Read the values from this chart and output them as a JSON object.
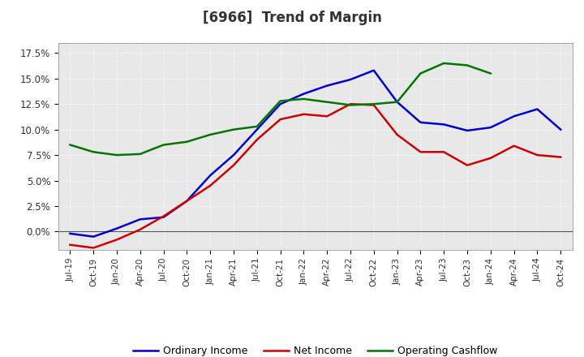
{
  "title": "[6966]  Trend of Margin",
  "x_labels": [
    "Jul-19",
    "Oct-19",
    "Jan-20",
    "Apr-20",
    "Jul-20",
    "Oct-20",
    "Jan-21",
    "Apr-21",
    "Jul-21",
    "Oct-21",
    "Jan-22",
    "Apr-22",
    "Jul-22",
    "Oct-22",
    "Jan-23",
    "Apr-23",
    "Jul-23",
    "Oct-23",
    "Jan-24",
    "Apr-24",
    "Jul-24",
    "Oct-24"
  ],
  "ordinary_income": [
    -0.002,
    -0.005,
    0.003,
    0.012,
    0.014,
    0.03,
    0.055,
    0.075,
    0.1,
    0.125,
    0.135,
    0.143,
    0.149,
    0.158,
    0.127,
    0.107,
    0.105,
    0.099,
    0.102,
    0.113,
    0.12,
    0.1
  ],
  "net_income": [
    -0.013,
    -0.016,
    -0.008,
    0.002,
    0.015,
    0.03,
    0.045,
    0.065,
    0.09,
    0.11,
    0.115,
    0.113,
    0.125,
    0.124,
    0.095,
    0.078,
    0.078,
    0.065,
    0.072,
    0.084,
    0.075,
    0.073
  ],
  "operating_cashflow": [
    0.085,
    0.078,
    0.075,
    0.076,
    0.085,
    0.088,
    0.095,
    0.1,
    0.103,
    0.128,
    0.13,
    0.127,
    0.124,
    0.125,
    0.127,
    0.155,
    0.165,
    0.163,
    0.155,
    null,
    null,
    null
  ],
  "ylim": [
    -0.018,
    0.185
  ],
  "yticks": [
    0.0,
    0.025,
    0.05,
    0.075,
    0.1,
    0.125,
    0.15,
    0.175
  ],
  "ytick_labels": [
    "0.0%",
    "2.5%",
    "5.0%",
    "7.5%",
    "10.0%",
    "12.5%",
    "15.0%",
    "17.5%"
  ],
  "ordinary_color": "#0000cc",
  "net_income_color": "#cc0000",
  "operating_color": "#007700",
  "legend_labels": [
    "Ordinary Income",
    "Net Income",
    "Operating Cashflow"
  ],
  "background_color": "#ffffff",
  "plot_bg_color": "#e8e8e8",
  "grid_color": "#ffffff",
  "line_width": 1.8,
  "title_color": "#333333"
}
